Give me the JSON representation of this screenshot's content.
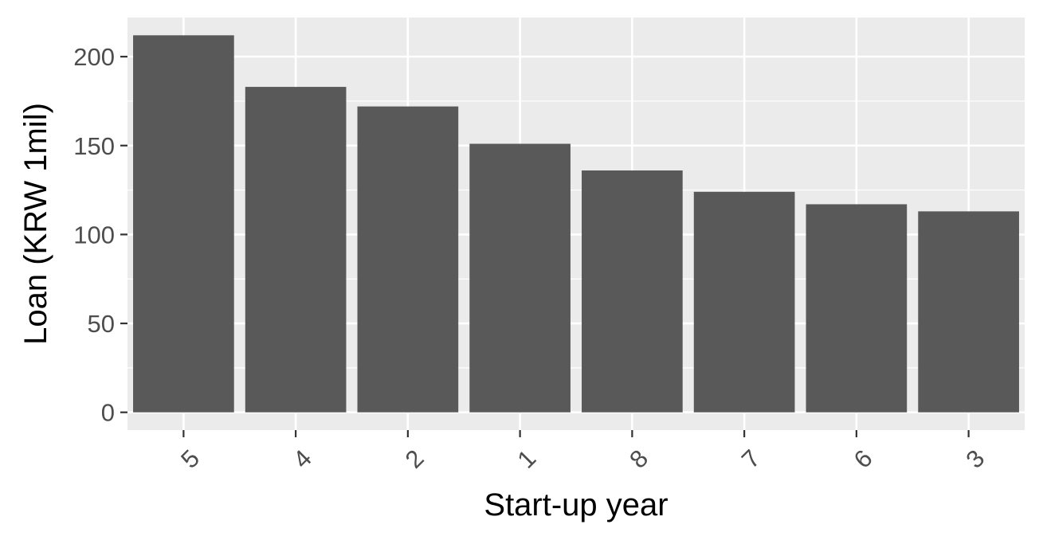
{
  "chart_data": {
    "type": "bar",
    "categories": [
      "5",
      "4",
      "2",
      "1",
      "8",
      "7",
      "6",
      "3"
    ],
    "values": [
      212,
      183,
      172,
      151,
      136,
      124,
      117,
      113
    ],
    "title": "",
    "xlabel": "Start-up year",
    "ylabel": "Loan (KRW 1mil)",
    "ylim": [
      -10,
      222
    ],
    "yticks": [
      "0",
      "50",
      "100",
      "150",
      "200"
    ],
    "grid": true,
    "colors": {
      "bar": "#595959",
      "panel": "#ebebeb",
      "grid": "#ffffff",
      "tick_text": "#4d4d4d",
      "axis_title": "#000000"
    }
  }
}
